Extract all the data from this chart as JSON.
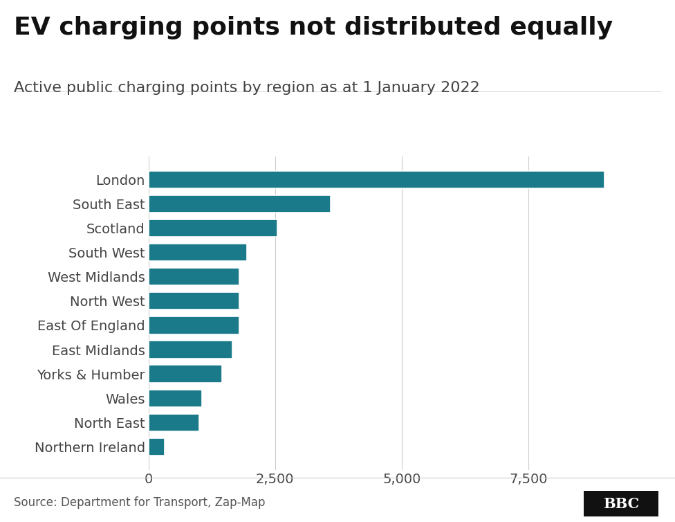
{
  "title": "EV charging points not distributed equally",
  "subtitle": "Active public charging points by region as at 1 January 2022",
  "source": "Source: Department for Transport, Zap-Map",
  "categories": [
    "London",
    "South East",
    "Scotland",
    "South West",
    "West Midlands",
    "North West",
    "East Of England",
    "East Midlands",
    "Yorks & Humber",
    "Wales",
    "North East",
    "Northern Ireland"
  ],
  "values": [
    9000,
    3600,
    2550,
    1950,
    1800,
    1800,
    1800,
    1650,
    1450,
    1050,
    1000,
    320
  ],
  "bar_color": "#1a7a8a",
  "background_color": "#ffffff",
  "xlim": [
    0,
    10000
  ],
  "xticks": [
    0,
    2500,
    5000,
    7500
  ],
  "title_fontsize": 26,
  "subtitle_fontsize": 16,
  "tick_label_fontsize": 14,
  "source_fontsize": 12,
  "bar_height": 0.72,
  "title_color": "#111111",
  "subtitle_color": "#444444",
  "label_color": "#444444",
  "grid_color": "#cccccc",
  "bbc_bg": "#111111"
}
